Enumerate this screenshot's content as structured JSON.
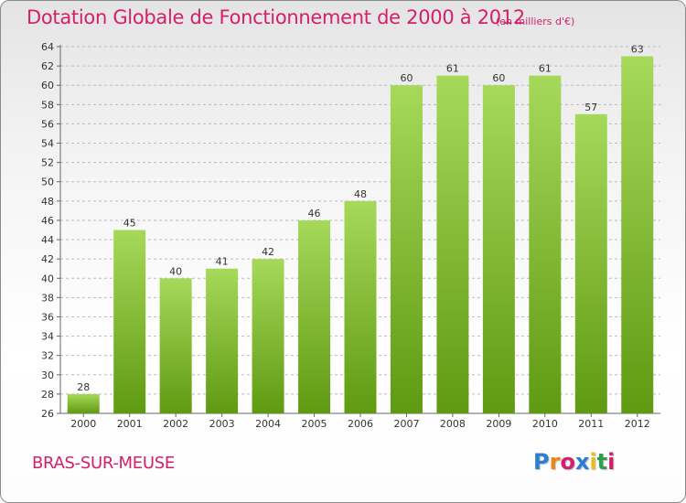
{
  "title": "Dotation Globale de Fonctionnement de 2000 à 2012",
  "unit_label": "(en milliers d'€)",
  "commune": "BRAS-SUR-MEUSE",
  "logo": {
    "text": "Proxiti",
    "colors": [
      "#2a7fd0",
      "#e8861a",
      "#d4206a",
      "#2a7fd0",
      "#e8c01a",
      "#2aa04a",
      "#d4206a"
    ]
  },
  "colors": {
    "accent": "#d4206a",
    "bar_top": "#a6d95a",
    "bar_bottom": "#5f9a12",
    "grid": "#bbbbbb"
  },
  "chart_data": {
    "type": "bar",
    "categories": [
      "2000",
      "2001",
      "2002",
      "2003",
      "2004",
      "2005",
      "2006",
      "2007",
      "2008",
      "2009",
      "2010",
      "2011",
      "2012"
    ],
    "values": [
      28,
      45,
      40,
      41,
      42,
      46,
      48,
      60,
      61,
      60,
      61,
      57,
      63
    ],
    "ylim": [
      26,
      64
    ],
    "yticks": [
      26,
      28,
      30,
      32,
      34,
      36,
      38,
      40,
      42,
      44,
      46,
      48,
      50,
      52,
      54,
      56,
      58,
      60,
      62,
      64
    ],
    "grid": "horizontal dashed",
    "data_labels": true
  }
}
